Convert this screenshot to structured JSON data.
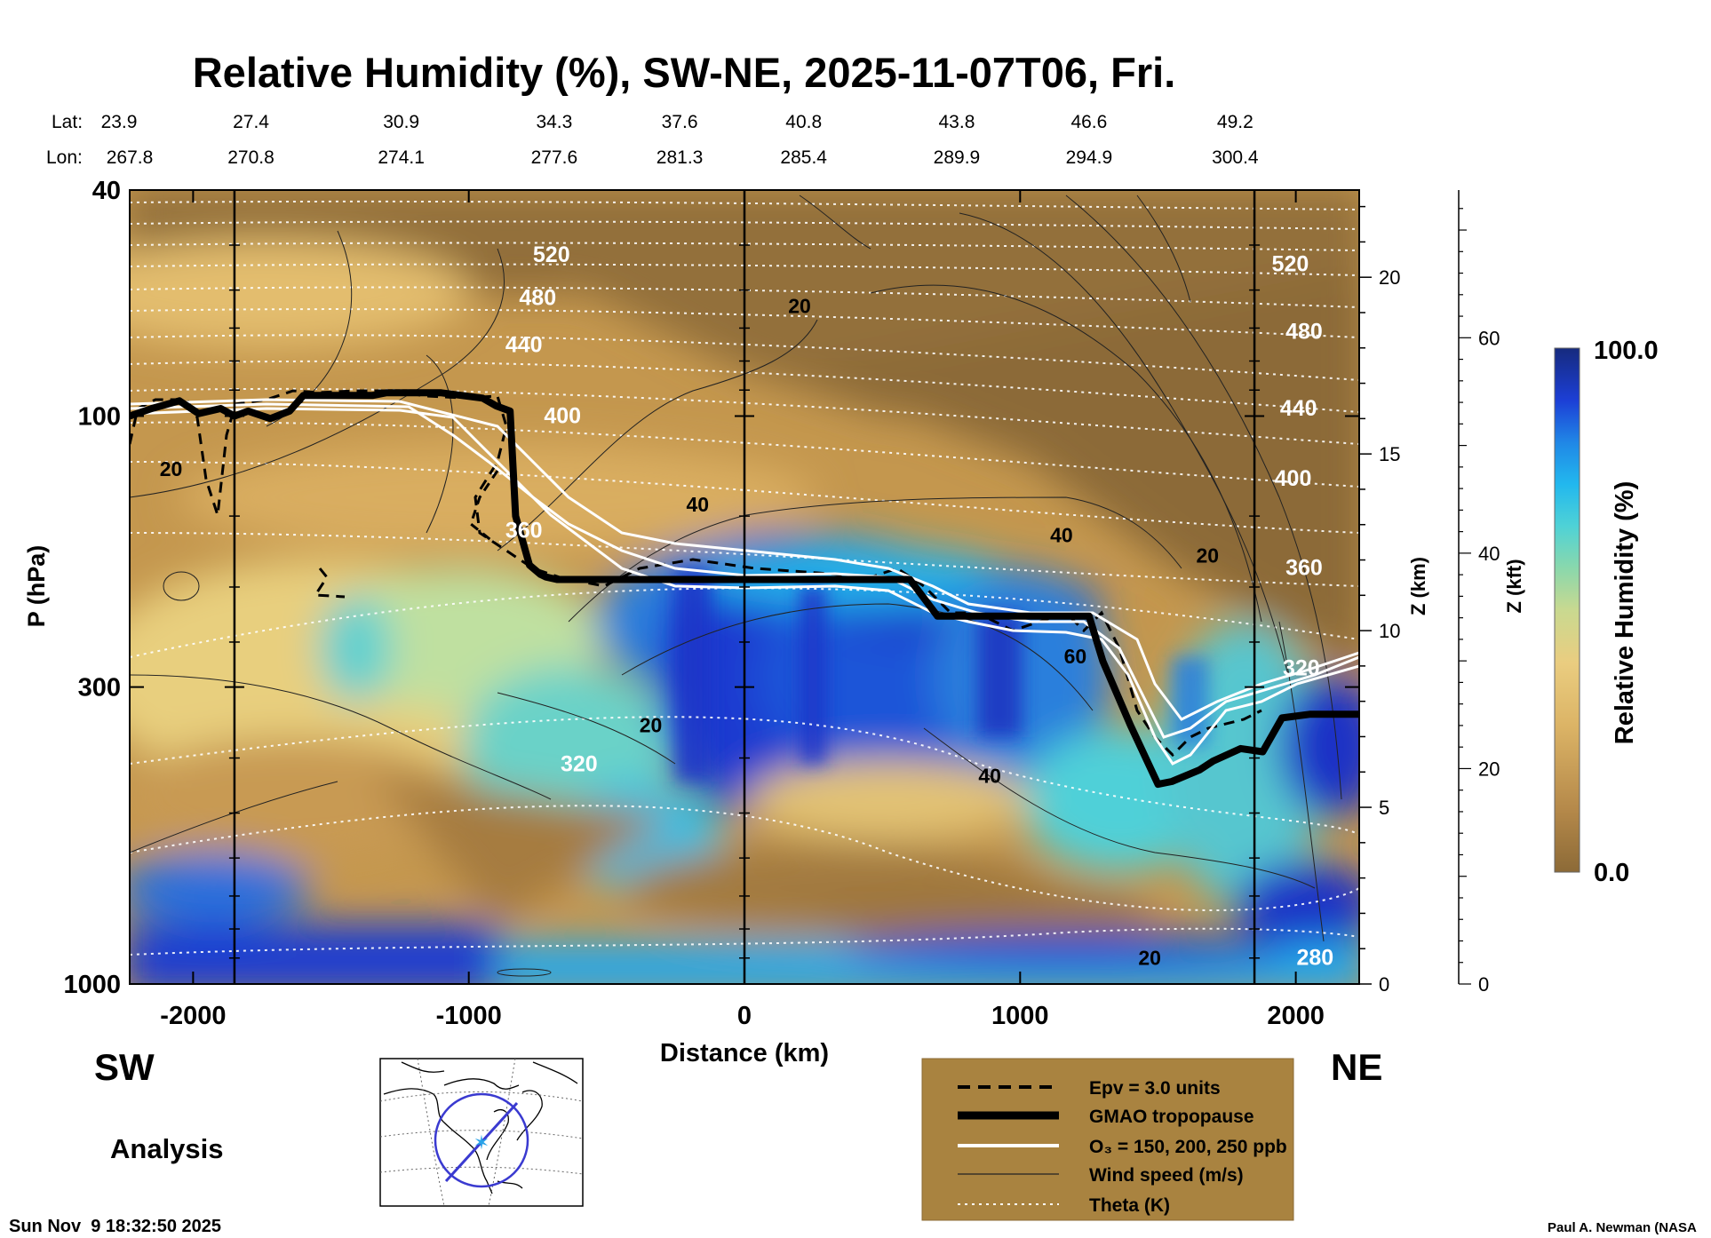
{
  "chart_data": {
    "type": "heatmap",
    "title": "Relative Humidity (%), SW-NE, 2025-11-07T06, Fri.",
    "xlabel": "Distance (km)",
    "ylabel": "P (hPa)",
    "right_axis_1_label": "Z (km)",
    "right_axis_2_label": "Z (kft)",
    "colorbar_label": "Relative Humidity (%)",
    "colorbar_max_label": "100.0",
    "colorbar_min_label": "0.0",
    "xlim": [
      -2230,
      2230
    ],
    "ylim": [
      1000,
      40
    ],
    "y_scale": "log",
    "x_ticks": [
      -2000,
      -1000,
      0,
      1000,
      2000
    ],
    "x_tick_labels": [
      "-2000",
      "-1000",
      "0",
      "1000",
      "2000"
    ],
    "y_ticks": [
      40,
      100,
      300,
      1000
    ],
    "y_tick_labels": [
      "40",
      "100",
      "300",
      "1000"
    ],
    "z_km_ticks": [
      0,
      5,
      10,
      15,
      20
    ],
    "z_kft_ticks": [
      0,
      20,
      40,
      60
    ],
    "lat_label": "Lat:",
    "lon_label": "Lon:",
    "lat_values": [
      "23.9",
      "27.4",
      "30.9",
      "34.3",
      "37.6",
      "40.8",
      "43.8",
      "46.6",
      "49.2"
    ],
    "lon_values": [
      "267.8",
      "270.8",
      "274.1",
      "277.6",
      "281.3",
      "285.4",
      "289.9",
      "294.9",
      "300.4"
    ],
    "latlon_positions_km": [
      -2230,
      -1790,
      -1245,
      -690,
      -235,
      215,
      770,
      1250,
      1780
    ],
    "vertical_lines_km": [
      -1850,
      0,
      1850
    ],
    "sw_label": "SW",
    "ne_label": "NE",
    "analysis_label": "Analysis",
    "timestamp": "Sun Nov  9 18:32:50 2025",
    "credit": "Paul A. Newman (NASA",
    "tropopause_km": [
      -2230,
      -2150,
      -2050,
      -1980,
      -1900,
      -1850,
      -1800,
      -1720,
      -1650,
      -1600,
      -1550,
      -1450,
      -1350,
      -1300,
      -1250,
      -1100,
      -950,
      -900,
      -850,
      -830,
      -780,
      -740,
      -720,
      -700,
      -680,
      -600,
      -400,
      0,
      600,
      700,
      750,
      1100,
      1250,
      1300,
      1400,
      1500,
      1550,
      1650,
      1700,
      1800,
      1880,
      1950,
      2050,
      2230
    ],
    "tropopause_hpa": [
      100,
      97,
      94,
      99,
      97,
      100,
      98,
      101,
      98,
      92,
      92,
      92,
      92,
      91,
      91,
      91,
      93,
      96,
      98,
      150,
      183,
      190,
      192,
      193,
      194,
      194,
      194,
      194,
      194,
      225,
      225,
      225,
      225,
      270,
      350,
      445,
      440,
      420,
      405,
      385,
      390,
      340,
      335,
      335
    ],
    "series": [
      {
        "name": "Epv = 3.0 units",
        "style": "dashed"
      },
      {
        "name": "GMAO tropopause",
        "style": "thick"
      },
      {
        "name": "O₃ = 150, 200, 250 ppb",
        "style": "white"
      },
      {
        "name": "Wind speed (m/s)",
        "style": "thin"
      },
      {
        "name": "Theta (K)",
        "style": "dotted"
      }
    ],
    "theta_labels": [
      {
        "text": "520",
        "x": -700,
        "p": 52
      },
      {
        "text": "480",
        "x": -750,
        "p": 62
      },
      {
        "text": "440",
        "x": -800,
        "p": 75
      },
      {
        "text": "400",
        "x": -660,
        "p": 100
      },
      {
        "text": "360",
        "x": -800,
        "p": 159
      },
      {
        "text": "320",
        "x": -600,
        "p": 410
      },
      {
        "text": "280",
        "x": 2070,
        "p": 900
      },
      {
        "text": "520",
        "x": 1980,
        "p": 54
      },
      {
        "text": "480",
        "x": 2030,
        "p": 71
      },
      {
        "text": "440",
        "x": 2010,
        "p": 97
      },
      {
        "text": "400",
        "x": 1990,
        "p": 129
      },
      {
        "text": "360",
        "x": 2030,
        "p": 185
      },
      {
        "text": "320",
        "x": 2020,
        "p": 278
      }
    ],
    "wind_labels": [
      {
        "text": "20",
        "x": -2080,
        "p": 124
      },
      {
        "text": "20",
        "x": 200,
        "p": 64
      },
      {
        "text": "40",
        "x": -170,
        "p": 143
      },
      {
        "text": "40",
        "x": 1150,
        "p": 162
      },
      {
        "text": "20",
        "x": 1680,
        "p": 176
      },
      {
        "text": "60",
        "x": 1200,
        "p": 265
      },
      {
        "text": "20",
        "x": -340,
        "p": 350
      },
      {
        "text": "40",
        "x": 890,
        "p": 430
      },
      {
        "text": "20",
        "x": 1470,
        "p": 900
      }
    ],
    "colorbar_colors": [
      "#8c6a37",
      "#c89b52",
      "#e8c476",
      "#dccf86",
      "#a9d79a",
      "#5fd3c5",
      "#22b9ea",
      "#1f7ce0",
      "#1a32cc",
      "#152a80"
    ]
  }
}
